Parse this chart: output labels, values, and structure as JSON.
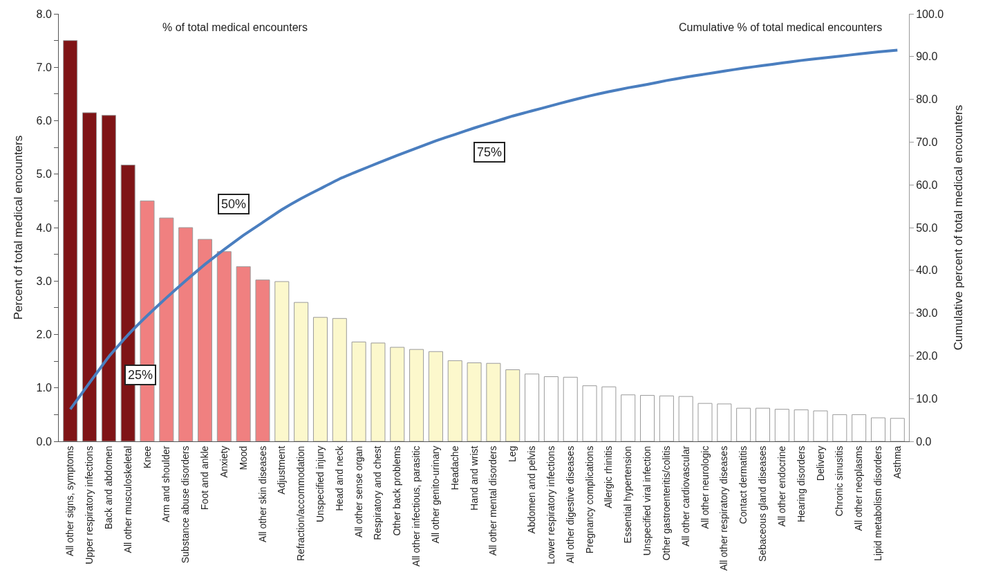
{
  "chart_data": {
    "type": "bar",
    "ylabel": "Percent of total medical encounters",
    "y2label": "Cumulative percent of total medical encounters",
    "categories": [
      "All other signs, symptoms",
      "Upper respiratory infections",
      "Back and abdomen",
      "All other musculoskeletal",
      "Knee",
      "Arm and shoulder",
      "Substance abuse disorders",
      "Foot and ankle",
      "Anxiety",
      "Mood",
      "All other skin diseases",
      "Adjustment",
      "Refraction/accommodation",
      "Unspecified injury",
      "Head and neck",
      "All other sense organ",
      "Respiratory and chest",
      "Other back problems",
      "All other infectious, parasitic",
      "All other genito-urinary",
      "Headache",
      "Hand and wrist",
      "All other mental disorders",
      "Leg",
      "Abdomen and pelvis",
      "Lower respiratory infections",
      "All other digestive diseases",
      "Pregnancy complications",
      "Allergic rhinitis",
      "Essential hypertension",
      "Unspecified viral infection",
      "Other gastroenteritis/colitis",
      "All other cardiovascular",
      "All other neurologic",
      "All other respiratory diseases",
      "Contact dermatitis",
      "Sebaceous gland diseases",
      "All other endocrine",
      "Hearing disorders",
      "Delivery",
      "Chronic sinusitis",
      "All other neoplasms",
      "Lipid metabolism disorders",
      "Asthma"
    ],
    "series": [
      {
        "values": [
          7.5,
          6.15,
          6.1,
          5.17,
          4.5,
          4.18,
          4.0,
          3.78,
          3.55,
          3.27,
          3.02,
          2.99,
          2.6,
          2.32,
          2.3,
          1.86,
          1.84,
          1.76,
          1.72,
          1.68,
          1.51,
          1.47,
          1.46,
          1.34,
          1.26,
          1.21,
          1.2,
          1.04,
          1.02,
          0.87,
          0.86,
          0.85,
          0.84,
          0.71,
          0.7,
          0.62,
          0.62,
          0.6,
          0.59,
          0.57,
          0.5,
          0.5,
          0.44,
          0.43
        ],
        "colors": [
          "#7f1416",
          "#7f1416",
          "#7f1416",
          "#7f1416",
          "#f08080",
          "#f08080",
          "#f08080",
          "#f08080",
          "#f08080",
          "#f08080",
          "#f08080",
          "#fcf8cc",
          "#fcf8cc",
          "#fcf8cc",
          "#fcf8cc",
          "#fcf8cc",
          "#fcf8cc",
          "#fcf8cc",
          "#fcf8cc",
          "#fcf8cc",
          "#fcf8cc",
          "#fcf8cc",
          "#fcf8cc",
          "#fcf8cc",
          "#ffffff",
          "#ffffff",
          "#ffffff",
          "#ffffff",
          "#ffffff",
          "#ffffff",
          "#ffffff",
          "#ffffff",
          "#ffffff",
          "#ffffff",
          "#ffffff",
          "#ffffff",
          "#ffffff",
          "#ffffff",
          "#ffffff",
          "#ffffff",
          "#ffffff",
          "#ffffff",
          "#ffffff",
          "#ffffff"
        ]
      },
      {
        "type": "line",
        "axis": "y2",
        "color": "#4a7ebf",
        "values": [
          7.5,
          13.7,
          19.8,
          24.9,
          29.4,
          33.6,
          37.6,
          41.4,
          44.9,
          48.2,
          51.2,
          54.2,
          56.8,
          59.1,
          61.4,
          63.3,
          65.1,
          66.9,
          68.6,
          70.3,
          71.8,
          73.3,
          74.7,
          76.1,
          77.3,
          78.5,
          79.7,
          80.8,
          81.8,
          82.7,
          83.5,
          84.4,
          85.2,
          85.9,
          86.6,
          87.3,
          87.9,
          88.5,
          89.1,
          89.6,
          90.1,
          90.6,
          91.1,
          91.5
        ]
      }
    ],
    "ylim": [
      0,
      8
    ],
    "yticks": [
      {
        "value": 0,
        "label": "0.0"
      },
      {
        "value": 0.5,
        "label": null
      },
      {
        "value": 1,
        "label": "1.0"
      },
      {
        "value": 1.5,
        "label": null
      },
      {
        "value": 2,
        "label": "2.0"
      },
      {
        "value": 2.5,
        "label": null
      },
      {
        "value": 3,
        "label": "3.0"
      },
      {
        "value": 3.5,
        "label": null
      },
      {
        "value": 4,
        "label": "4.0"
      },
      {
        "value": 4.5,
        "label": null
      },
      {
        "value": 5,
        "label": "5.0"
      },
      {
        "value": 5.5,
        "label": null
      },
      {
        "value": 6,
        "label": "6.0"
      },
      {
        "value": 6.5,
        "label": null
      },
      {
        "value": 7,
        "label": "7.0"
      },
      {
        "value": 7.5,
        "label": null
      },
      {
        "value": 8,
        "label": "8.0"
      }
    ],
    "y2lim": [
      0,
      100
    ],
    "y2ticks": [
      {
        "value": 0,
        "label": "0.0"
      },
      {
        "value": 10,
        "label": "10.0"
      },
      {
        "value": 20,
        "label": "20.0"
      },
      {
        "value": 30,
        "label": "30.0"
      },
      {
        "value": 40,
        "label": "40.0"
      },
      {
        "value": 50,
        "label": "50.0"
      },
      {
        "value": 60,
        "label": "60.0"
      },
      {
        "value": 70,
        "label": "70.0"
      },
      {
        "value": 80,
        "label": "80.0"
      },
      {
        "value": 90,
        "label": "90.0"
      },
      {
        "value": 100,
        "label": "100.0"
      }
    ],
    "annotations": [
      "% of total medical encounters",
      "Cumulative % of total medical encounters",
      "25%",
      "50%",
      "75%"
    ]
  }
}
